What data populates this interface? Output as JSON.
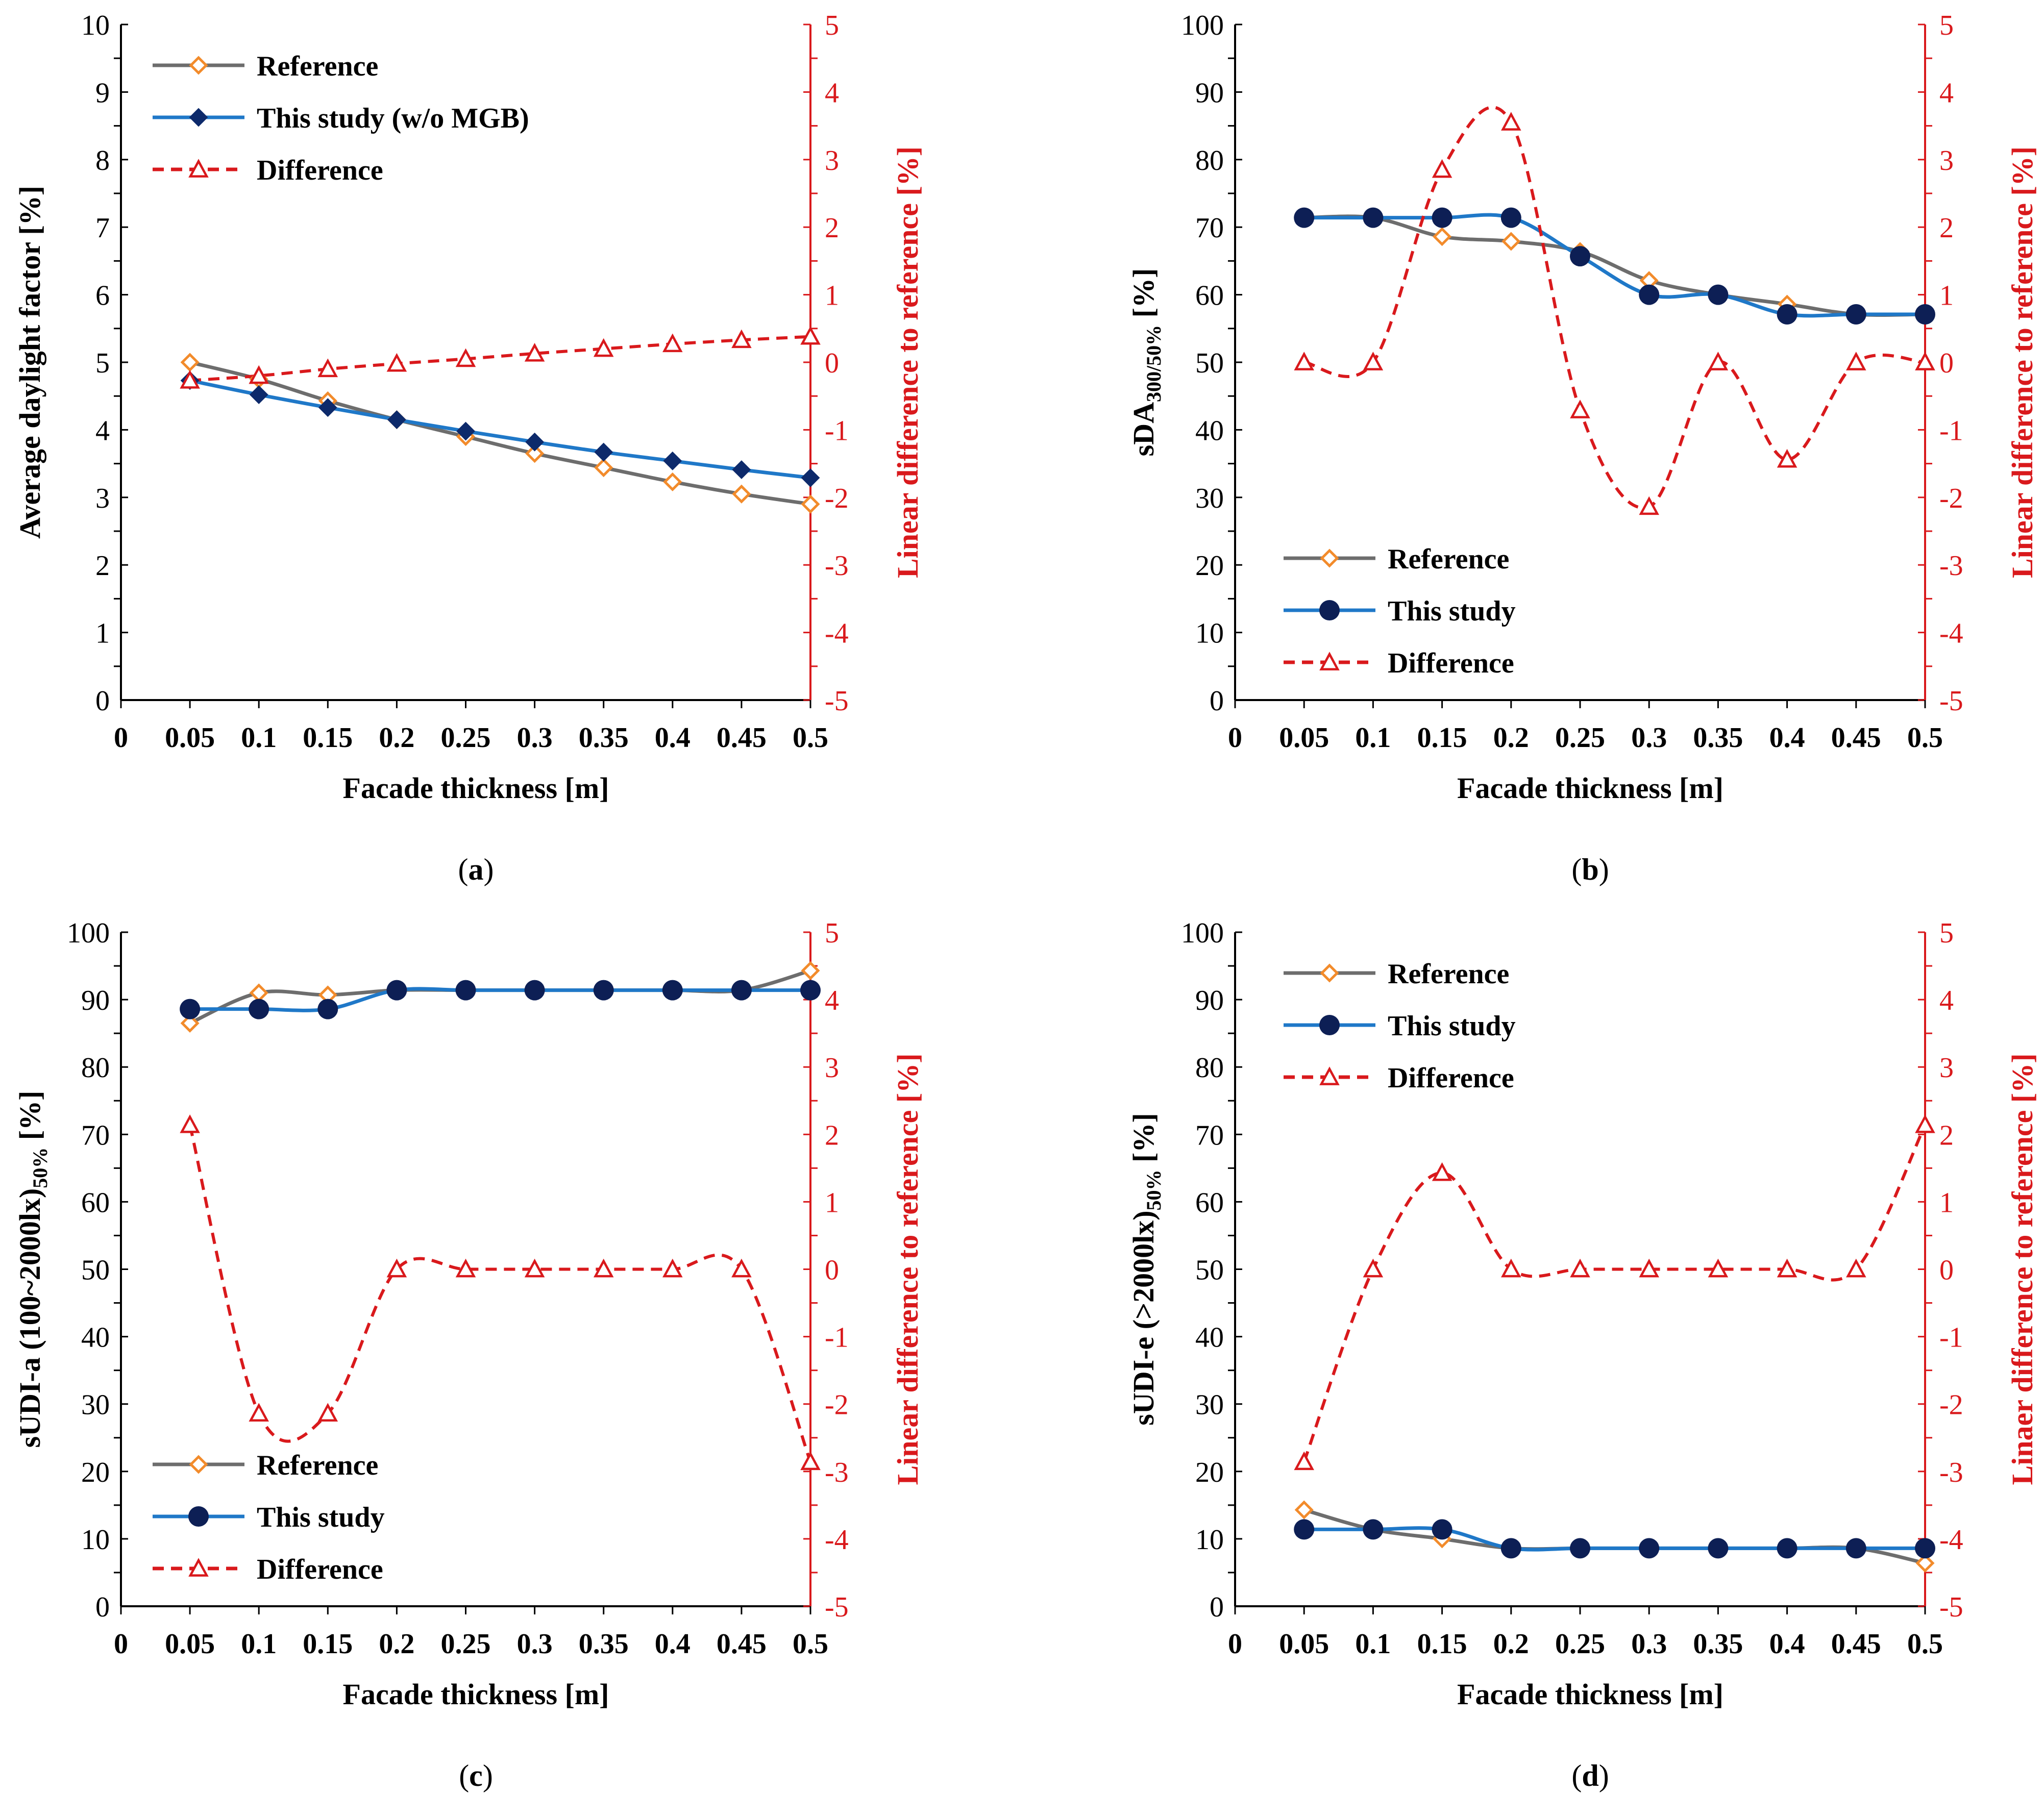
{
  "figure": {
    "x_axis_label": "Facade thickness [m]",
    "x_tick_labels": [
      "0",
      "0.05",
      "0.1",
      "0.15",
      "0.2",
      "0.25",
      "0.3",
      "0.35",
      "0.4",
      "0.45",
      "0.5"
    ],
    "colors": {
      "reference_line": "#6d6d6d",
      "reference_marker": "#f28b2b",
      "study_line": "#1f78c8",
      "study_marker_a": "#0d2a6b",
      "study_marker_bcd": "#0d1f55",
      "difference": "#d9191c"
    },
    "markers": {
      "reference": "open-diamond",
      "study_a": "filled-diamond",
      "study_bcd": "filled-circle",
      "difference": "open-triangle"
    }
  },
  "chart_data": [
    {
      "panel": "a",
      "caption": "(a)",
      "type": "line",
      "ylabel": "Average daylight factor [%]",
      "y2label": "Linear difference to reference [%]",
      "x": [
        0.05,
        0.1,
        0.15,
        0.2,
        0.25,
        0.3,
        0.35,
        0.4,
        0.45,
        0.5
      ],
      "xlim": [
        0,
        0.5
      ],
      "ylim": [
        0,
        10
      ],
      "y_ticks": [
        "0",
        "1",
        "2",
        "3",
        "4",
        "5",
        "6",
        "7",
        "8",
        "9",
        "10"
      ],
      "y2lim": [
        -5,
        5
      ],
      "y2_ticks": [
        "-5",
        "-4",
        "-3",
        "-2",
        "-1",
        "0",
        "1",
        "2",
        "3",
        "4",
        "5"
      ],
      "legend_position": "top-left",
      "series": [
        {
          "name": "Reference",
          "axis": "left",
          "values": [
            5.0,
            4.75,
            4.43,
            4.15,
            3.9,
            3.65,
            3.44,
            3.23,
            3.05,
            2.9
          ]
        },
        {
          "name": "This study (w/o MGB)",
          "axis": "left",
          "values": [
            4.73,
            4.52,
            4.33,
            4.15,
            3.98,
            3.82,
            3.67,
            3.54,
            3.41,
            3.29
          ]
        },
        {
          "name": "Difference",
          "axis": "right",
          "values": [
            -0.27,
            -0.2,
            -0.1,
            -0.02,
            0.05,
            0.13,
            0.2,
            0.27,
            0.33,
            0.38
          ]
        }
      ]
    },
    {
      "panel": "b",
      "caption": "(b)",
      "type": "line",
      "ylabel": "sDA",
      "ylabel_sub": "300/50%",
      "ylabel_end": " [%]",
      "y2label": "Linear difference to reference [%]",
      "x": [
        0.05,
        0.1,
        0.15,
        0.2,
        0.25,
        0.3,
        0.35,
        0.4,
        0.45,
        0.5
      ],
      "xlim": [
        0,
        0.5
      ],
      "ylim": [
        0,
        100
      ],
      "y_ticks": [
        "0",
        "10",
        "20",
        "30",
        "40",
        "50",
        "60",
        "70",
        "80",
        "90",
        "100"
      ],
      "y2lim": [
        -5,
        5
      ],
      "y2_ticks": [
        "-5",
        "-4",
        "-3",
        "-2",
        "-1",
        "0",
        "1",
        "2",
        "3",
        "4",
        "5"
      ],
      "legend_position": "bottom-left",
      "series": [
        {
          "name": "Reference",
          "axis": "left",
          "values": [
            71.4,
            71.4,
            68.6,
            67.9,
            66.4,
            62.1,
            60.0,
            58.6,
            57.1,
            57.1
          ]
        },
        {
          "name": "This study",
          "axis": "left",
          "values": [
            71.4,
            71.4,
            71.4,
            71.4,
            65.7,
            60.0,
            60.0,
            57.1,
            57.1,
            57.1
          ]
        },
        {
          "name": "Difference",
          "axis": "right",
          "values": [
            0.0,
            0.0,
            2.85,
            3.55,
            -0.71,
            -2.14,
            0.0,
            -1.44,
            0.0,
            0.0
          ]
        }
      ]
    },
    {
      "panel": "c",
      "caption": "(c)",
      "type": "line",
      "ylabel": "sUDI-a (100~2000lx)",
      "ylabel_sub": "50%",
      "ylabel_end": " [%]",
      "y2label": "Linear difference to reference [%]",
      "x": [
        0.05,
        0.1,
        0.15,
        0.2,
        0.25,
        0.3,
        0.35,
        0.4,
        0.45,
        0.5
      ],
      "xlim": [
        0,
        0.5
      ],
      "ylim": [
        0,
        100
      ],
      "y_ticks": [
        "0",
        "10",
        "20",
        "30",
        "40",
        "50",
        "60",
        "70",
        "80",
        "90",
        "100"
      ],
      "y2lim": [
        -5,
        5
      ],
      "y2_ticks": [
        "-5",
        "-4",
        "-3",
        "-2",
        "-1",
        "0",
        "1",
        "2",
        "3",
        "4",
        "5"
      ],
      "legend_position": "bottom-left",
      "series": [
        {
          "name": "Reference",
          "axis": "left",
          "values": [
            86.5,
            91.0,
            90.7,
            91.4,
            91.4,
            91.4,
            91.4,
            91.4,
            91.4,
            94.3
          ]
        },
        {
          "name": "This study",
          "axis": "left",
          "values": [
            88.6,
            88.6,
            88.6,
            91.4,
            91.4,
            91.4,
            91.4,
            91.4,
            91.4,
            91.4
          ]
        },
        {
          "name": "Difference",
          "axis": "right",
          "values": [
            2.14,
            -2.14,
            -2.14,
            0.0,
            0.0,
            0.0,
            0.0,
            0.0,
            0.0,
            -2.86
          ]
        }
      ]
    },
    {
      "panel": "d",
      "caption": "(d)",
      "type": "line",
      "ylabel": "sUDI-e (>2000lx)",
      "ylabel_sub": "50%",
      "ylabel_end": " [%]",
      "y2label": "Linaer difference to reference [%]",
      "x": [
        0.05,
        0.1,
        0.15,
        0.2,
        0.25,
        0.3,
        0.35,
        0.4,
        0.45,
        0.5
      ],
      "xlim": [
        0,
        0.5
      ],
      "ylim": [
        0,
        100
      ],
      "y_ticks": [
        "0",
        "10",
        "20",
        "30",
        "40",
        "50",
        "60",
        "70",
        "80",
        "90",
        "100"
      ],
      "y2lim": [
        -5,
        5
      ],
      "y2_ticks": [
        "-5",
        "-4",
        "-3",
        "-2",
        "-1",
        "0",
        "1",
        "2",
        "3",
        "4",
        "5"
      ],
      "legend_position": "top-left",
      "series": [
        {
          "name": "Reference",
          "axis": "left",
          "values": [
            14.3,
            11.4,
            10.0,
            8.6,
            8.6,
            8.6,
            8.6,
            8.6,
            8.6,
            6.4
          ]
        },
        {
          "name": "This study",
          "axis": "left",
          "values": [
            11.4,
            11.4,
            11.4,
            8.6,
            8.6,
            8.6,
            8.6,
            8.6,
            8.6,
            8.6
          ]
        },
        {
          "name": "Difference",
          "axis": "right",
          "values": [
            -2.86,
            0.0,
            1.43,
            0.0,
            0.0,
            0.0,
            0.0,
            0.0,
            0.0,
            2.14
          ]
        }
      ]
    }
  ]
}
